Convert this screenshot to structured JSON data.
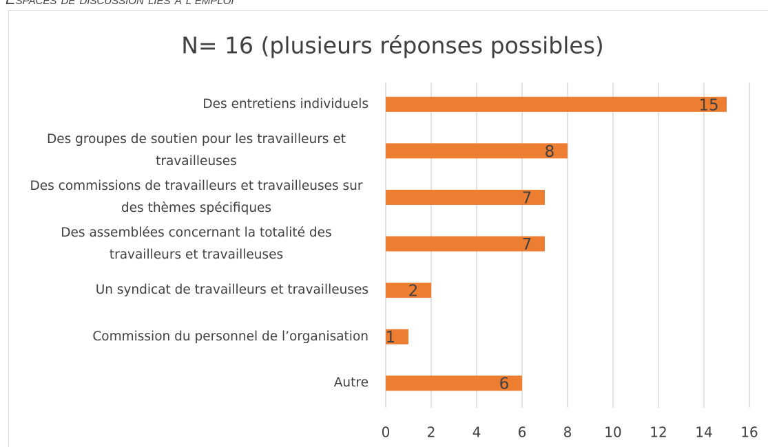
{
  "caption": "Espaces de discussion liés à l’emploi",
  "chart_data": {
    "type": "bar",
    "orientation": "horizontal",
    "title": "N= 16 (plusieurs réponses possibles)",
    "categories": [
      "Des entretiens individuels",
      "Des groupes de soutien pour les travailleurs et travailleuses",
      "Des commissions de travailleurs et travailleuses sur des thèmes spécifiques",
      "Des assemblées concernant la totalité des travailleurs et travailleuses",
      "Un syndicat de travailleurs et travailleuses",
      "Commission du personnel de l’organisation",
      "Autre"
    ],
    "values": [
      15,
      8,
      7,
      7,
      2,
      1,
      6
    ],
    "color": "#ed7d31",
    "xlim": [
      0,
      16
    ],
    "xticks": [
      0,
      2,
      4,
      6,
      8,
      10,
      12,
      14,
      16
    ],
    "grid": true
  }
}
